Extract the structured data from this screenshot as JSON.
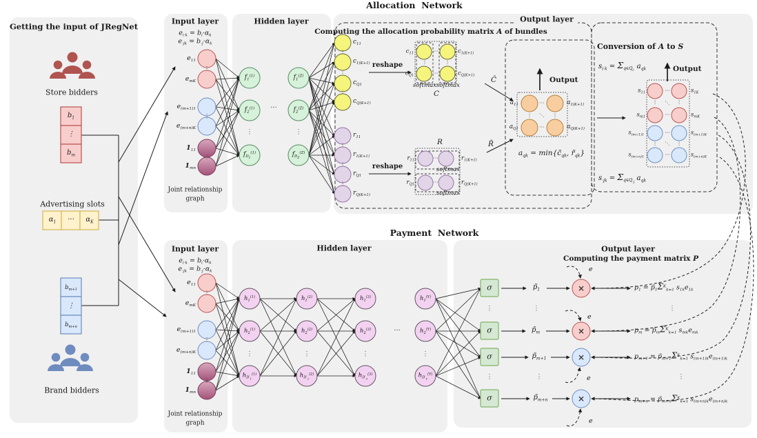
{
  "left_panel": {
    "title": "Getting the input of JRegNet",
    "store_bidders_label": "Store bidders",
    "store_bids": [
      "b<sub>1</sub>",
      "⋮",
      "b<sub>m</sub>"
    ],
    "advertising_slots_label": "Advertising slots",
    "slots": [
      "α<sub>1</sub>",
      "···",
      "α<sub>K</sub>"
    ],
    "brand_bids": [
      "b<sub>m+1</sub>",
      "⋮",
      "b<sub>m+n</sub>"
    ],
    "brand_bidders_label": "Brand bidders"
  },
  "allocation_network": {
    "title": "Allocation&nbsp; Network",
    "input_layer": {
      "title": "Input layer",
      "formula_line1": "e<sub>i·k</sub> = b<sub>i</sub>·α<sub>k</sub>",
      "formula_line2": "e<sub>·jk</sub> = b<sub>·j</sub>·α<sub>k</sub>",
      "nodes": [
        "e<sub>11</sub>",
        "e<sub>mK</sub>",
        "e<sub>(m+1)1</sub>",
        "e<sub>(m+n)K</sub>",
        "<b>1</b><sub>11</sub>",
        "<b>1</b><sub>mn</sub>"
      ],
      "caption_line1": "Joint relationship",
      "caption_line2": "graph"
    },
    "hidden_layer": {
      "title": "Hidden layer",
      "col1": [
        "f<sub>1</sub><sup>(1)</sup>",
        "f<sub>2</sub><sup>(1)</sup>",
        "f<sub>D<sub>1</sub></sub><sup>(1)</sup>"
      ],
      "col2": [
        "f<sub>1</sub><sup>(Z)</sup>",
        "f<sub>2</sub><sup>(Z)</sup>",
        "f<sub>D<sub>Z</sub></sub><sup>(Z)</sup>"
      ]
    },
    "output_layer": {
      "title": "Output layer",
      "heading": "Computing the allocation probability matrix <i>A</i> of bundles",
      "c_nodes": [
        "c<sub>11</sub>",
        "c<sub>1(K+1)</sub>",
        "c<sub>Q1</sub>",
        "c<sub>Q(K+1)</sub>"
      ],
      "r_nodes": [
        "r<sub>11</sub>",
        "r<sub>1(K+1)</sub>",
        "r<sub>Q1</sub>",
        "r<sub>Q(K+1)</sub>"
      ],
      "reshape_label": "reshape",
      "c_matrix": {
        "label": "C",
        "softmax": "softmax",
        "left": [
          "c<sub>11</sub>",
          "c<sub>Q1</sub>"
        ],
        "right": [
          "c<sub>1(K+1)</sub>",
          "c<sub>Q(K+1)</sub>"
        ]
      },
      "r_matrix": {
        "label": "R",
        "softmax": "softmax",
        "left": [
          "r<sub>11</sub>",
          "r<sub>Q1</sub>"
        ],
        "right": [
          "r<sub>1(K+1)</sub>",
          "r<sub>Q(K+1)</sub>"
        ]
      },
      "c_hat": "Ĉ",
      "r_hat": "R̂",
      "output_label": "Output",
      "a_matrix": {
        "left": [
          "a<sub>11</sub>",
          "a<sub>Q1</sub>"
        ],
        "right": [
          "a<sub>1(K+1)</sub>",
          "a<sub>Q(K+1)</sub>"
        ]
      },
      "formula": "a<sub>qk</sub> = min{c̃<sub>qk</sub>, r̃<sub>qk</sub>}"
    },
    "conversion": {
      "title": "Conversion of <i>A</i> to <i>S</i>",
      "formula_top": "s<sub>i·k</sub> = <span class=\"sum\">Σ</span><sub>q∈Q<sub>i·</sub></sub> a<sub>qk</sub>",
      "output_label": "Output",
      "s_left": [
        "s<sub>11</sub>",
        "s<sub>m1</sub>",
        "s<sub>(m+1)1</sub>",
        "s<sub>(m+n)1</sub>"
      ],
      "s_right": [
        "s<sub>1K</sub>",
        "s<sub>mK</sub>",
        "s<sub>(m+1)K</sub>",
        "s<sub>(m+n)K</sub>"
      ],
      "formula_bottom": "s<sub>·jk</sub> = <span class=\"sum\">Σ</span><sub>q∈Q<sub>·j</sub></sub> a<sub>qk</sub>"
    }
  },
  "payment_network": {
    "title": "Payment&nbsp; Network",
    "input_layer": {
      "title": "Input layer",
      "formula_line1": "e<sub>i·k</sub> = b<sub>i</sub>·α<sub>k</sub>",
      "formula_line2": "e<sub>·jk</sub> = b<sub>·j</sub>·α<sub>k</sub>",
      "nodes": [
        "e<sub>11</sub>",
        "e<sub>mK</sub>",
        "e<sub>(m+1)1</sub>",
        "e<sub>(m+n)K</sub>",
        "<b>1</b><sub>11</sub>",
        "<b>1</b><sub>mn</sub>"
      ],
      "caption_line1": "Joint relationship",
      "caption_line2": "graph"
    },
    "hidden_layer": {
      "title": "Hidden layer",
      "cols": [
        [
          "h<sub>1</sub><sup>(1)</sup>",
          "h<sub>2</sub><sup>(1)</sup>",
          "h<sub>D′<sub>1</sub></sub><sup>(1)</sup>"
        ],
        [
          "h<sub>1</sub><sup>(2)</sup>",
          "h<sub>2</sub><sup>(2)</sup>",
          "h<sub>D′<sub>2</sub></sub><sup>(2)</sup>"
        ],
        [
          "h<sub>1</sub><sup>(3)</sup>",
          "h<sub>2</sub><sup>(3)</sup>",
          "h<sub>D′<sub>3</sub></sub><sup>(3)</sup>"
        ],
        [
          "h<sub>1</sub><sup>(Y)</sup>",
          "h<sub>2</sub><sup>(Y)</sup>",
          "h<sub>D′<sub>Y</sub></sub><sup>(Y)</sup>"
        ]
      ]
    },
    "output_layer": {
      "title": "Output layer",
      "heading": "Computing the payment matrix <i>P</i>",
      "sigma": "σ",
      "p_tilde": [
        "p̃<sub>1</sub>",
        "p̃<sub>m</sub>",
        "p̃<sub>m+1</sub>",
        "p̃<sub>m+n</sub>"
      ],
      "times_symbol": "×",
      "e_label": "e",
      "formulas": [
        "p<sub>1</sub> = p̃<sub>1</sub><span class=\"sum\">Σ</span><sup>K</sup><sub>k=1</sub> s<sub>1k</sub>e<sub>1k</sub>",
        "p<sub>m</sub> = p̃<sub>m</sub><span class=\"sum\">Σ</span><sup>K</sup><sub>k=1</sub> s<sub>mk</sub>e<sub>mk</sub>",
        "p<sub>m+1</sub> = p̃<sub>m+1</sub><span class=\"sum\">Σ</span><sup>K</sup><sub>k=1</sub> s<sub>(m+1)k</sub>e<sub>(m+1)k</sub>",
        "p<sub>m+n</sub> = p̃<sub>m+n</sub><span class=\"sum\">Σ</span><sup>K</sup><sub>k=1</sub> s<sub>(m+n)k</sub>e<sub>(m+n)k</sub>"
      ]
    }
  },
  "glyphs": {
    "vdots": "⋮",
    "cdots": "···",
    "ddots": "⋱"
  },
  "colors": {
    "panel_gray": "#f0f0f0",
    "store_red": "#b05450",
    "brand_blue": "#6f8cbf",
    "node_pink_fill": "#f8cecc",
    "node_pink_stroke": "#b85450",
    "node_blue_fill": "#dae8fc",
    "node_blue_stroke": "#6c8ebf",
    "node_green_fill": "#d6f2da",
    "node_green_stroke": "#568a63",
    "node_yellow_fill": "#f5f57d",
    "node_yellow_stroke": "#6b6b3a",
    "node_purple_fill": "#e1d5e7",
    "node_purple_stroke": "#9673a6",
    "node_orange_fill": "#f8cd9f",
    "node_orange_stroke": "#b5823f",
    "node_magenta_fill": "#f3d2f1",
    "node_magenta_stroke": "#5f565f",
    "node_maroon_top": "#d9a8bd",
    "node_maroon_bottom": "#a3527a",
    "node_maroon_stroke": "#7a3b59",
    "sigma_fill": "#d5e8d4",
    "sigma_stroke": "#82b366",
    "box_yellow_fill": "#fff2cc",
    "box_yellow_stroke": "#d6b656"
  }
}
